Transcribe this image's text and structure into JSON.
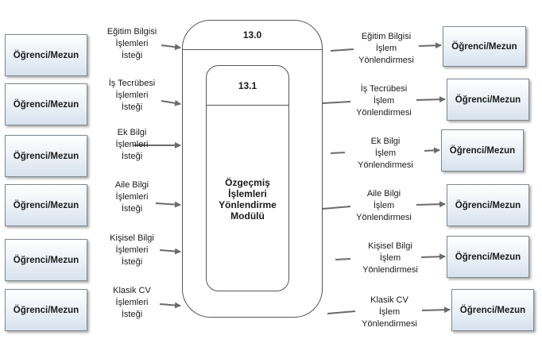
{
  "entity_label": "Öğrenci/Mezun",
  "process": {
    "outer_id": "13.0",
    "inner_id": "13.1",
    "inner_name": [
      "Özgeçmiş",
      "İşlemleri",
      "Yönlendirme",
      "Modülü"
    ]
  },
  "inputs": [
    [
      "Eğitim Bilgisi",
      "İşlemleri",
      "İsteği"
    ],
    [
      "İş Tecrübesi",
      "İşlemleri",
      "İsteği"
    ],
    [
      "Ek Bilgi",
      "İşlemleri",
      "İsteği"
    ],
    [
      "Aile Bilgi",
      "İşlemleri",
      "İsteği"
    ],
    [
      "Kişisel Bilgi",
      "İşlemleri",
      "İsteği"
    ],
    [
      "Klasik CV",
      "İşlemleri",
      "İsteği"
    ]
  ],
  "outputs": [
    [
      "Eğitim Bilgisi",
      "İşlem",
      "Yönlendirmesi"
    ],
    [
      "İş Tecrübesi",
      "İşlem",
      "Yönlendirmesi"
    ],
    [
      "Ek Bilgi",
      "İşlem",
      "Yönlendirmesi"
    ],
    [
      "Aile Bilgi",
      "İşlem",
      "Yönlendirmesi"
    ],
    [
      "Kişisel Bilgi",
      "İşlem",
      "Yönlendirmesi"
    ],
    [
      "Klasik CV",
      "İşlem",
      "Yönlendirmesi"
    ]
  ]
}
